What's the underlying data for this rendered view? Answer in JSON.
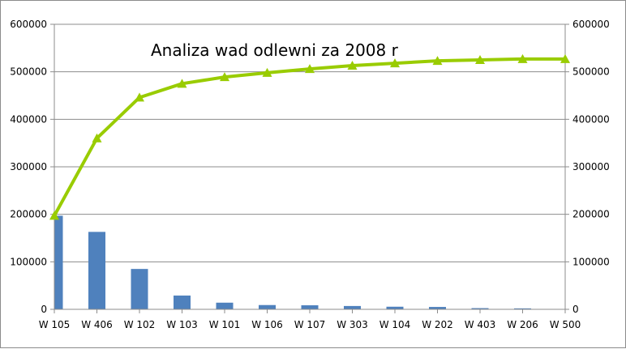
{
  "chart_data": {
    "type": "bar",
    "title": "Analiza wad odlewni za 2008 r",
    "xlabel": "",
    "ylabel": "",
    "categories": [
      "W 105",
      "W 406",
      "W 102",
      "W 103",
      "W 101",
      "W 106",
      "W  107",
      "W 303",
      "W 104",
      "W 202",
      "W 403",
      "W 206",
      "W 500"
    ],
    "series": [
      {
        "type": "bar",
        "axis": "left",
        "color": "#4f81bd",
        "values": [
          197000,
          163000,
          85000,
          29000,
          14000,
          9000,
          8500,
          7000,
          5500,
          5000,
          2500,
          2000,
          0
        ]
      },
      {
        "type": "line",
        "axis": "right",
        "color": "#99cc00",
        "marker": "triangle",
        "values": [
          197000,
          360000,
          446000,
          475000,
          489000,
          498000,
          506000,
          513000,
          518000,
          523000,
          525000,
          527000,
          527000
        ]
      }
    ],
    "ylim": [
      0,
      600000
    ],
    "y2lim": [
      0,
      600000
    ],
    "yticks": [
      "0",
      "100000",
      "200000",
      "300000",
      "400000",
      "500000",
      "600000"
    ],
    "y2ticks": [
      "0",
      "100000",
      "200000",
      "300000",
      "400000",
      "500000",
      "600000"
    ],
    "grid": true,
    "legend": "none"
  }
}
